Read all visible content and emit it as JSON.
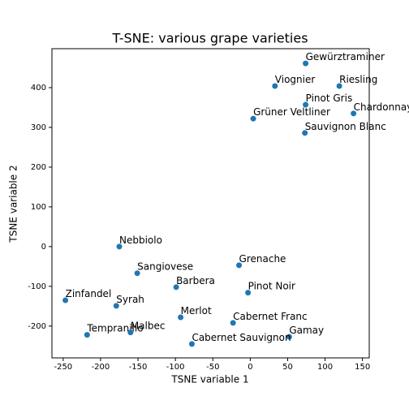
{
  "chart_data": {
    "type": "scatter",
    "title": "T-SNE: various grape varieties",
    "x_label": "TSNE variable 1",
    "y_label": "TSNE variable 2",
    "color": "#1f77b4",
    "labels": [
      "Gewürztraminer",
      "Viognier",
      "Riesling",
      "Pinot Gris",
      "Chardonnay",
      "Grüner Veltliner",
      "Sauvignon Blanc",
      "Nebbiolo",
      "Grenache",
      "Sangiovese",
      "Barbera",
      "Pinot Noir",
      "Zinfandel",
      "Syrah",
      "Merlot",
      "Cabernet Franc",
      "Gamay",
      "Tempranillo",
      "Malbec",
      "Cabernet Sauvignon"
    ],
    "x": [
      74,
      33,
      119,
      74,
      138,
      4,
      73,
      -175,
      -15,
      -151,
      -99,
      -3,
      -247,
      -179,
      -93,
      -23,
      52,
      -218,
      -160,
      -78
    ],
    "y": [
      461,
      404,
      404,
      357,
      335,
      322,
      286,
      0,
      -47,
      -67,
      -102,
      -116,
      -135,
      -149,
      -178,
      -192,
      -227,
      -222,
      -216,
      -245
    ],
    "xlim": [
      -265,
      159
    ],
    "ylim": [
      -280,
      498
    ],
    "xticks": [
      -250,
      -200,
      -150,
      -100,
      -50,
      0,
      50,
      100,
      150
    ],
    "yticks": [
      -200,
      -100,
      0,
      100,
      200,
      300,
      400
    ]
  }
}
